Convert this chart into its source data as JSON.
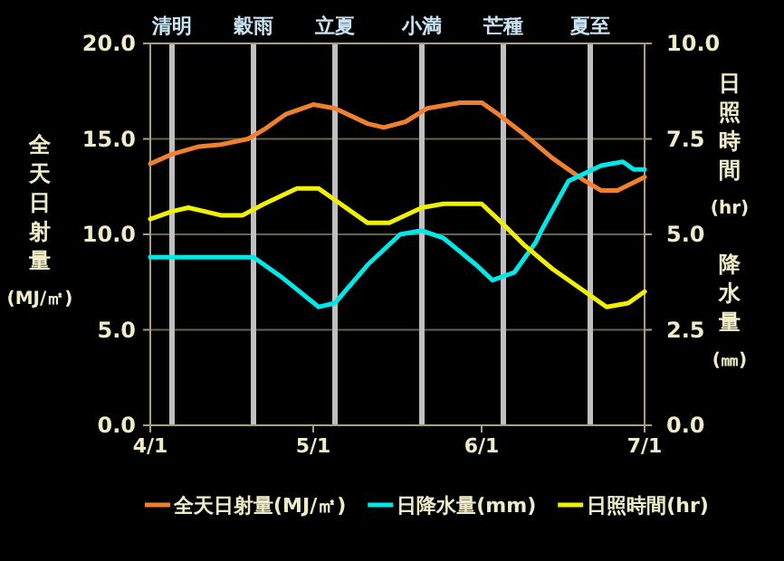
{
  "chart_data": {
    "type": "line",
    "ylabel": "全天日射量(MJ/㎡)",
    "y2label": "日照時間(hr)",
    "annotations": [
      "降水量(㎜)"
    ],
    "xlim": [
      "--04-01",
      "--07-01"
    ],
    "xticks": [
      {
        "value": "--04-01",
        "label": "4/1"
      },
      {
        "value": "--05-01",
        "label": "5/1"
      },
      {
        "value": "--06-01",
        "label": "6/1"
      },
      {
        "value": "--07-01",
        "label": "7/1"
      }
    ],
    "ylim": [
      0,
      20
    ],
    "yticks": [
      {
        "value": 0,
        "label": "0.0"
      },
      {
        "value": 5,
        "label": "5.0"
      },
      {
        "value": 10,
        "label": "10.0"
      },
      {
        "value": 15,
        "label": "15.0"
      },
      {
        "value": 20,
        "label": "20.0"
      }
    ],
    "y2lim": [
      0,
      10
    ],
    "y2ticks": [
      {
        "value": 0,
        "label": "0.0"
      },
      2.5,
      {
        "value": 5,
        "label": "5.0"
      },
      7.5,
      {
        "value": 10,
        "label": "10.0"
      }
    ],
    "grid": "y",
    "legend": "bottom",
    "marker": "none",
    "line_style": "solid",
    "ref_lines": [
      {
        "axis": "x",
        "value": "--04-05",
        "label": "清明",
        "color": "#c0c0c0"
      },
      {
        "axis": "x",
        "value": "--04-20",
        "label": "穀雨",
        "color": "#c0c0c0"
      },
      {
        "axis": "x",
        "value": "--05-05",
        "label": "立夏",
        "color": "#c0c0c0"
      },
      {
        "axis": "x",
        "value": "--05-21",
        "label": "小満",
        "color": "#c0c0c0"
      },
      {
        "axis": "x",
        "value": "--06-05",
        "label": "芒種",
        "color": "#c0c0c0"
      },
      {
        "axis": "x",
        "value": "--06-21",
        "label": "夏至",
        "color": "#c0c0c0"
      }
    ],
    "series": [
      {
        "name": "全天日射量(MJ/㎡)",
        "color": "#f08030",
        "x": [
          "--04-01",
          "--04-05",
          "--04-10",
          "--04-14",
          "--04-19",
          "--04-22",
          "--04-26",
          "--05-01",
          "--05-05",
          "--05-11",
          "--05-14",
          "--05-18",
          "--05-22",
          "--05-28",
          "--06-01",
          "--06-04",
          "--06-09",
          "--06-14",
          "--06-20",
          "--06-23",
          "--06-26",
          "--07-01"
        ],
        "values": [
          13.7,
          14.2,
          14.6,
          14.7,
          15.0,
          15.5,
          16.3,
          16.8,
          16.6,
          15.8,
          15.6,
          15.9,
          16.6,
          16.9,
          16.9,
          16.3,
          15.2,
          14.0,
          12.8,
          12.3,
          12.3,
          13.0
        ]
      },
      {
        "name": "日降水量(mm)",
        "color": "#00e8e8",
        "axis": "y2",
        "x": [
          "--04-01",
          "--04-20",
          "--04-25",
          "--05-02",
          "--05-05",
          "--05-11",
          "--05-17",
          "--05-21",
          "--05-25",
          "--05-31",
          "--06-03",
          "--06-07",
          "--06-11",
          "--06-12",
          "--06-17",
          "--06-23",
          "--06-27",
          "--06-29",
          "--07-01"
        ],
        "values": [
          4.4,
          4.4,
          3.9,
          3.1,
          3.2,
          4.2,
          5.0,
          5.1,
          4.9,
          4.2,
          3.8,
          4.0,
          4.8,
          5.1,
          6.4,
          6.8,
          6.9,
          6.7,
          6.7
        ]
      },
      {
        "name": "日照時間(hr)",
        "color": "#f0f000",
        "axis": "y2",
        "x": [
          "--04-01",
          "--04-05",
          "--04-08",
          "--04-11",
          "--04-14",
          "--04-18",
          "--04-22",
          "--04-28",
          "--05-02",
          "--05-05",
          "--05-11",
          "--05-15",
          "--05-21",
          "--05-25",
          "--06-01",
          "--06-04",
          "--06-09",
          "--06-14",
          "--06-20",
          "--06-24",
          "--06-28",
          "--07-01"
        ],
        "values": [
          5.4,
          5.6,
          5.7,
          5.6,
          5.5,
          5.5,
          5.8,
          6.2,
          6.2,
          5.9,
          5.3,
          5.3,
          5.7,
          5.8,
          5.8,
          5.4,
          4.7,
          4.1,
          3.5,
          3.1,
          3.2,
          3.5
        ]
      }
    ]
  }
}
